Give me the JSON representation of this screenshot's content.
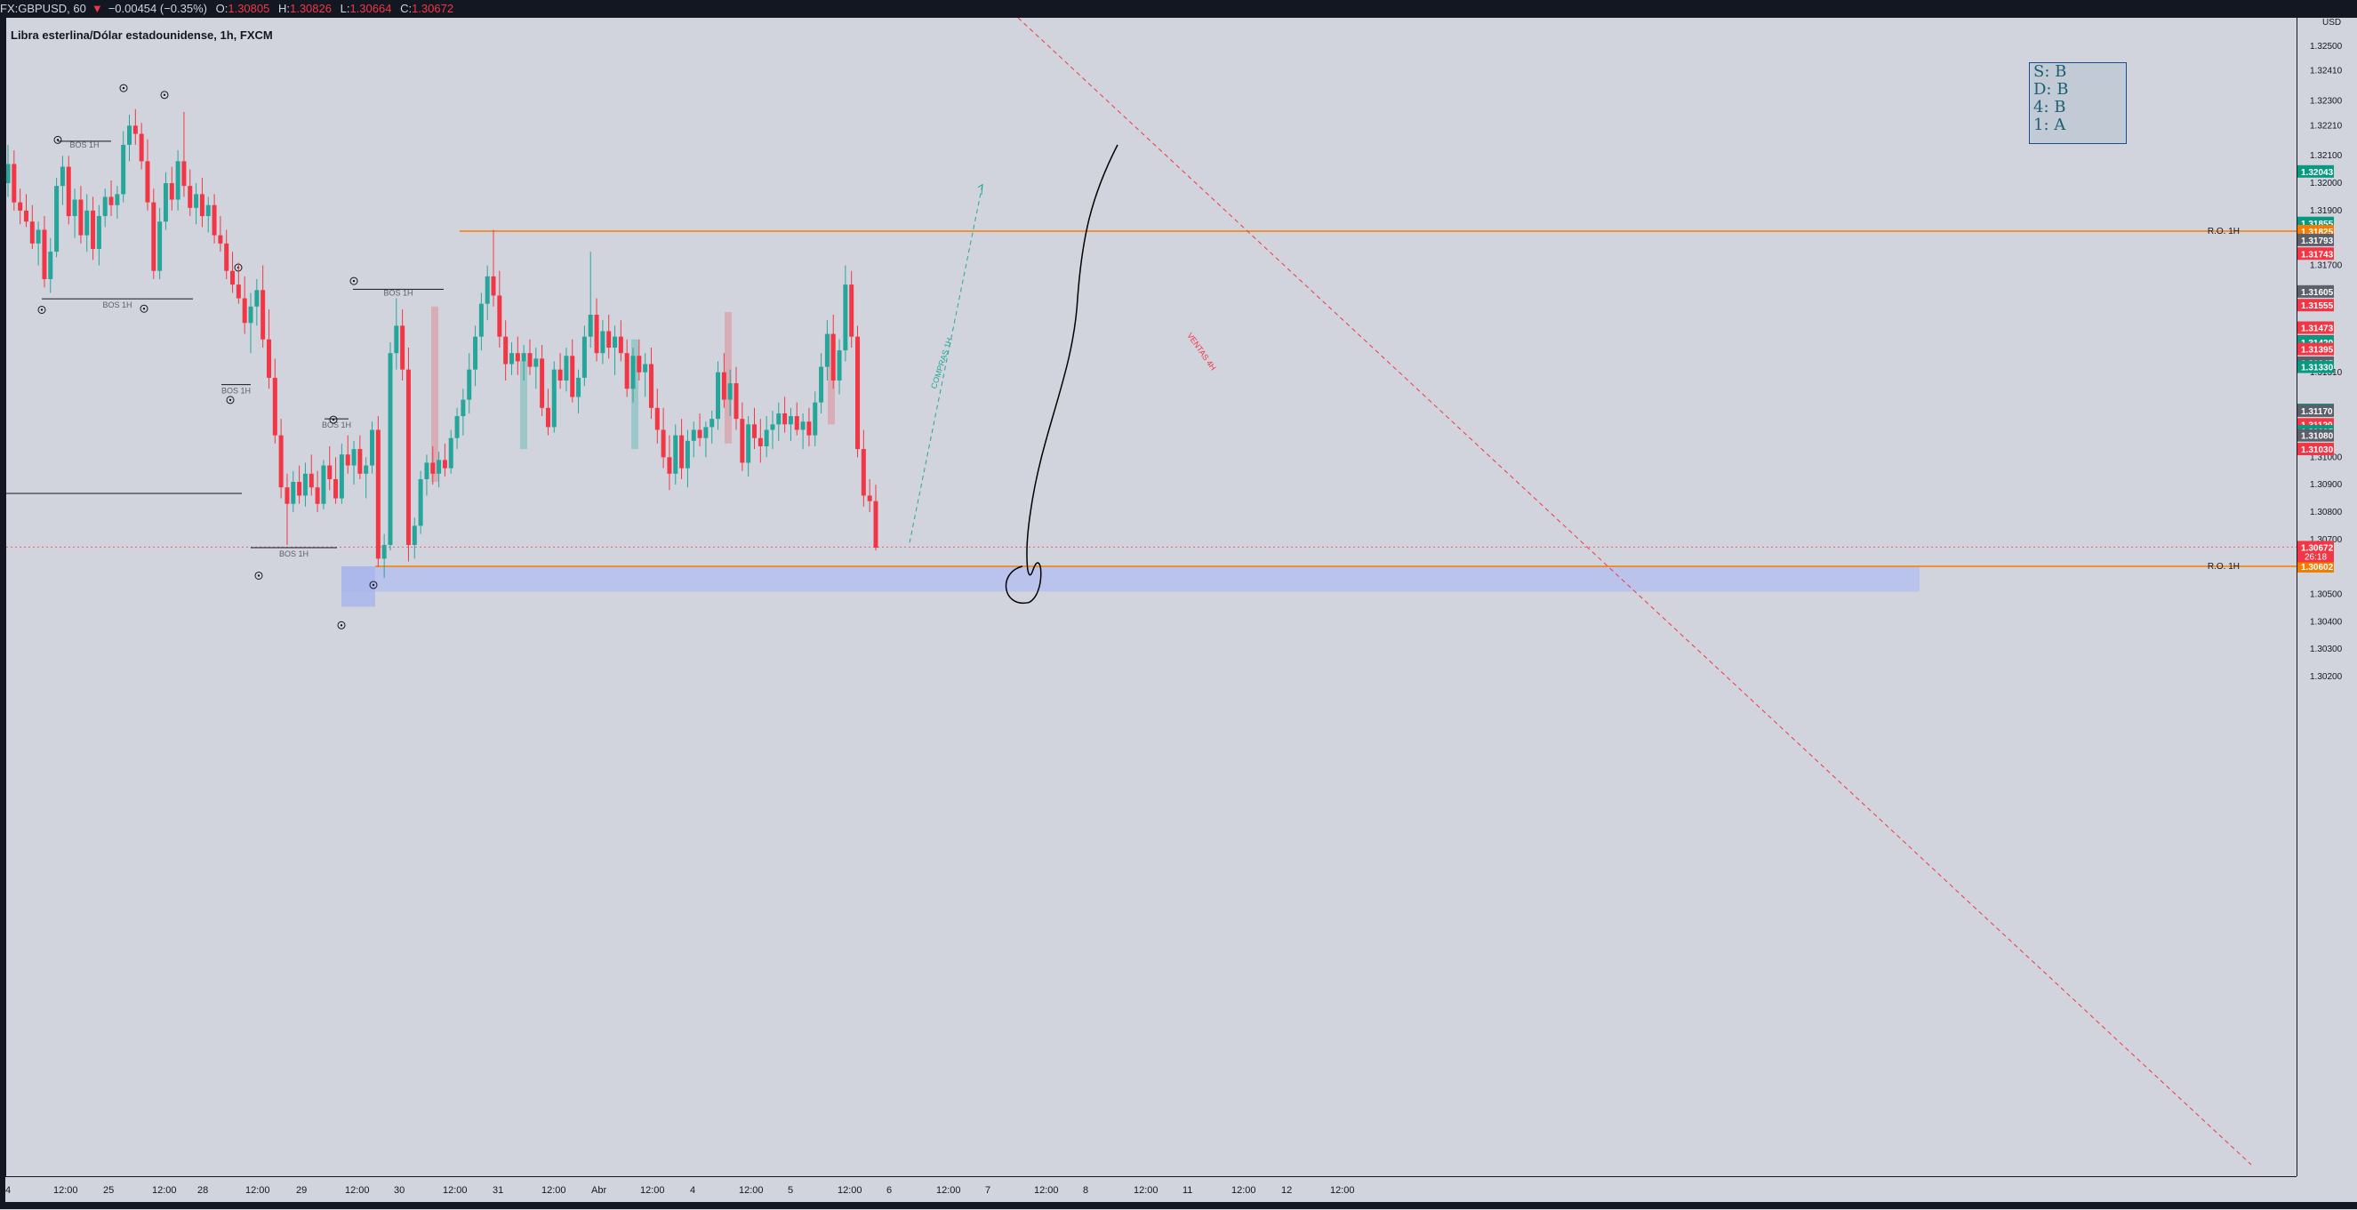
{
  "header": {
    "symbol": "FX:GBPUSD, 60",
    "last": "1.30672",
    "change": "−0.00454 (−0.35%)",
    "o_label": "O:",
    "o": "1.30805",
    "h_label": "H:",
    "h": "1.30826",
    "l_label": "L:",
    "l": "1.30664",
    "c_label": "C:",
    "c": "1.30672",
    "title": "Libra esterlina/Dólar estadounidense, 1h, FXCM"
  },
  "infobox": {
    "lines": [
      "S: B",
      "D: B",
      "4: B",
      "1: A"
    ]
  },
  "colors": {
    "up": "#26a69a",
    "down": "#f23645",
    "bg": "#d1d4dc",
    "orange": "#f57c00",
    "zone": "#b2bdf0"
  },
  "chart_data": {
    "type": "candlestick",
    "currency": "USD",
    "yaxis": {
      "ticks": [
        1.325,
        1.3241,
        1.323,
        1.3221,
        1.321,
        1.32,
        1.319,
        1.317,
        1.3131,
        1.31,
        1.309,
        1.308,
        1.307,
        1.305,
        1.304,
        1.303,
        1.302
      ],
      "tick_labels": [
        "1.32500",
        "1.32410",
        "1.32300",
        "1.32210",
        "1.32100",
        "1.32000",
        "1.31900",
        "1.31700",
        "1.31310",
        "1.31000",
        "1.30900",
        "1.30800",
        "1.30700",
        "1.30500",
        "1.30400",
        "1.30300",
        "1.30200"
      ],
      "range": [
        1.3016,
        1.3262
      ]
    },
    "xaxis": {
      "labels": [
        "4",
        "12:00",
        "25",
        "12:00",
        "28",
        "12:00",
        "29",
        "12:00",
        "30",
        "12:00",
        "31",
        "12:00",
        "Abr",
        "12:00",
        "4",
        "12:00",
        "5",
        "12:00",
        "6",
        "12:00",
        "7",
        "12:00",
        "8",
        "12:00",
        "11",
        "12:00",
        "12",
        "12:00"
      ]
    },
    "price_labels": [
      {
        "value": "1.32043",
        "color": "#089981"
      },
      {
        "value": "1.31855",
        "color": "#089981"
      },
      {
        "value": "1.31825",
        "color": "#f57c00"
      },
      {
        "value": "1.31793",
        "color": "#5d606b"
      },
      {
        "value": "1.31743",
        "color": "#f23645"
      },
      {
        "value": "1.31605",
        "color": "#5d606b"
      },
      {
        "value": "1.31555",
        "color": "#f23645"
      },
      {
        "value": "1.31473",
        "color": "#f23645"
      },
      {
        "value": "1.31423",
        "color": "#5d606b"
      },
      {
        "value": "1.31420",
        "color": "#089981"
      },
      {
        "value": "1.31395",
        "color": "#f23645"
      },
      {
        "value": "1.31345",
        "color": "#5d606b"
      },
      {
        "value": "1.31330",
        "color": "#089981"
      },
      {
        "value": "1.31173",
        "color": "#089981"
      },
      {
        "value": "1.31170",
        "color": "#5d606b"
      },
      {
        "value": "1.31120",
        "color": "#f23645"
      },
      {
        "value": "1.31095",
        "color": "#089981"
      },
      {
        "value": "1.31080",
        "color": "#5d606b"
      },
      {
        "value": "1.31030",
        "color": "#f23645"
      },
      {
        "value": "1.30672",
        "color": "#f23645"
      },
      {
        "value": "1.30602",
        "color": "#f57c00"
      }
    ],
    "current_price": "1.30672",
    "countdown": "26:18",
    "levels": [
      {
        "label": "R.O. 1H",
        "value": 1.31825
      },
      {
        "label": "R.O. 1H",
        "value": 1.30602
      }
    ],
    "bos_labels": [
      "BOS 1H",
      "BOS 1H",
      "BOS 1H",
      "BOS 1H",
      "BOS 1H",
      "BOS 1H"
    ],
    "annotations": {
      "buy_arrow": "COMPRAS 1H",
      "sell_line": "VENTAS 4H"
    },
    "candles": [
      [
        1.32,
        1.3214,
        1.3195,
        1.3207
      ],
      [
        1.3207,
        1.3212,
        1.319,
        1.3193
      ],
      [
        1.3193,
        1.3198,
        1.3185,
        1.319
      ],
      [
        1.319,
        1.3196,
        1.3184,
        1.3186
      ],
      [
        1.3186,
        1.3192,
        1.3176,
        1.3178
      ],
      [
        1.3178,
        1.3186,
        1.317,
        1.3183
      ],
      [
        1.3183,
        1.3188,
        1.3162,
        1.3165
      ],
      [
        1.3165,
        1.318,
        1.316,
        1.3175
      ],
      [
        1.3175,
        1.3202,
        1.3173,
        1.3199
      ],
      [
        1.3199,
        1.321,
        1.3192,
        1.3206
      ],
      [
        1.3206,
        1.321,
        1.3185,
        1.3188
      ],
      [
        1.3188,
        1.3198,
        1.318,
        1.3194
      ],
      [
        1.3194,
        1.3199,
        1.3178,
        1.3181
      ],
      [
        1.3181,
        1.3196,
        1.3175,
        1.319
      ],
      [
        1.319,
        1.3195,
        1.3172,
        1.3176
      ],
      [
        1.3176,
        1.3192,
        1.317,
        1.3188
      ],
      [
        1.3188,
        1.3198,
        1.3184,
        1.3195
      ],
      [
        1.3195,
        1.3201,
        1.3188,
        1.3192
      ],
      [
        1.3192,
        1.3199,
        1.3187,
        1.3196
      ],
      [
        1.3196,
        1.3219,
        1.3193,
        1.3214
      ],
      [
        1.3214,
        1.3225,
        1.3208,
        1.3221
      ],
      [
        1.3221,
        1.3227,
        1.3214,
        1.3218
      ],
      [
        1.3218,
        1.3222,
        1.3205,
        1.3208
      ],
      [
        1.3208,
        1.3216,
        1.319,
        1.3193
      ],
      [
        1.3193,
        1.3198,
        1.3165,
        1.3168
      ],
      [
        1.3168,
        1.3191,
        1.3165,
        1.3186
      ],
      [
        1.3186,
        1.3204,
        1.3183,
        1.32
      ],
      [
        1.32,
        1.3206,
        1.319,
        1.3194
      ],
      [
        1.3194,
        1.3212,
        1.319,
        1.3208
      ],
      [
        1.3208,
        1.3226,
        1.3195,
        1.3199
      ],
      [
        1.3199,
        1.3205,
        1.3188,
        1.3191
      ],
      [
        1.3191,
        1.32,
        1.3185,
        1.3196
      ],
      [
        1.3196,
        1.3202,
        1.3184,
        1.3188
      ],
      [
        1.3188,
        1.3195,
        1.3182,
        1.3192
      ],
      [
        1.3192,
        1.3196,
        1.3178,
        1.3181
      ],
      [
        1.3181,
        1.3188,
        1.3175,
        1.3178
      ],
      [
        1.3178,
        1.3183,
        1.3165,
        1.3168
      ],
      [
        1.3168,
        1.3175,
        1.316,
        1.3163
      ],
      [
        1.3163,
        1.3171,
        1.3156,
        1.3158
      ],
      [
        1.3158,
        1.3166,
        1.3145,
        1.3149
      ],
      [
        1.3149,
        1.316,
        1.3138,
        1.3155
      ],
      [
        1.3155,
        1.3165,
        1.3148,
        1.3161
      ],
      [
        1.3161,
        1.317,
        1.314,
        1.3143
      ],
      [
        1.3143,
        1.3154,
        1.3125,
        1.3129
      ],
      [
        1.3129,
        1.3136,
        1.3105,
        1.3108
      ],
      [
        1.3108,
        1.3114,
        1.3085,
        1.3089
      ],
      [
        1.3089,
        1.3094,
        1.3068,
        1.3083
      ],
      [
        1.3083,
        1.3095,
        1.308,
        1.3091
      ],
      [
        1.3091,
        1.3097,
        1.3083,
        1.3086
      ],
      [
        1.3086,
        1.3098,
        1.3082,
        1.3094
      ],
      [
        1.3094,
        1.3101,
        1.3086,
        1.3089
      ],
      [
        1.3089,
        1.3095,
        1.308,
        1.3083
      ],
      [
        1.3083,
        1.3099,
        1.3081,
        1.3097
      ],
      [
        1.3097,
        1.3104,
        1.3088,
        1.3092
      ],
      [
        1.3092,
        1.31,
        1.3083,
        1.3085
      ],
      [
        1.3085,
        1.3105,
        1.3083,
        1.3101
      ],
      [
        1.3101,
        1.3108,
        1.3094,
        1.3097
      ],
      [
        1.3097,
        1.3106,
        1.309,
        1.3103
      ],
      [
        1.3103,
        1.3108,
        1.3092,
        1.3094
      ],
      [
        1.3094,
        1.31,
        1.3085,
        1.3097
      ],
      [
        1.3097,
        1.3113,
        1.3094,
        1.311
      ],
      [
        1.311,
        1.3115,
        1.306,
        1.3063
      ],
      [
        1.3063,
        1.3072,
        1.3056,
        1.3068
      ],
      [
        1.3068,
        1.3142,
        1.3066,
        1.3138
      ],
      [
        1.3138,
        1.3158,
        1.3132,
        1.3148
      ],
      [
        1.3148,
        1.3154,
        1.3128,
        1.3132
      ],
      [
        1.3132,
        1.314,
        1.3062,
        1.3068
      ],
      [
        1.3068,
        1.3078,
        1.3063,
        1.3075
      ],
      [
        1.3075,
        1.3095,
        1.3072,
        1.3092
      ],
      [
        1.3092,
        1.3101,
        1.3086,
        1.3098
      ],
      [
        1.3098,
        1.3104,
        1.309,
        1.3094
      ],
      [
        1.3094,
        1.3102,
        1.3089,
        1.3099
      ],
      [
        1.3099,
        1.3105,
        1.3093,
        1.3096
      ],
      [
        1.3096,
        1.311,
        1.3094,
        1.3107
      ],
      [
        1.3107,
        1.3118,
        1.3103,
        1.3115
      ],
      [
        1.3115,
        1.3125,
        1.3108,
        1.3121
      ],
      [
        1.3121,
        1.3138,
        1.3116,
        1.3132
      ],
      [
        1.3132,
        1.3148,
        1.3126,
        1.3144
      ],
      [
        1.3144,
        1.316,
        1.3139,
        1.3156
      ],
      [
        1.3156,
        1.317,
        1.315,
        1.3166
      ],
      [
        1.3166,
        1.3183,
        1.3155,
        1.3159
      ],
      [
        1.3159,
        1.3168,
        1.314,
        1.3144
      ],
      [
        1.3144,
        1.315,
        1.3128,
        1.3134
      ],
      [
        1.3134,
        1.3142,
        1.313,
        1.3138
      ],
      [
        1.3138,
        1.3144,
        1.313,
        1.3135
      ],
      [
        1.3135,
        1.3141,
        1.3128,
        1.3138
      ],
      [
        1.3138,
        1.3143,
        1.313,
        1.3133
      ],
      [
        1.3133,
        1.314,
        1.3125,
        1.3136
      ],
      [
        1.3136,
        1.3141,
        1.3115,
        1.3118
      ],
      [
        1.3118,
        1.3125,
        1.3108,
        1.3111
      ],
      [
        1.3111,
        1.3135,
        1.3109,
        1.3132
      ],
      [
        1.3132,
        1.3138,
        1.3125,
        1.3128
      ],
      [
        1.3128,
        1.314,
        1.3124,
        1.3137
      ],
      [
        1.3137,
        1.3143,
        1.312,
        1.3122
      ],
      [
        1.3122,
        1.3132,
        1.3116,
        1.3129
      ],
      [
        1.3129,
        1.3148,
        1.3126,
        1.3144
      ],
      [
        1.3144,
        1.3175,
        1.314,
        1.3152
      ],
      [
        1.3152,
        1.3158,
        1.3135,
        1.3138
      ],
      [
        1.3138,
        1.315,
        1.3134,
        1.3146
      ],
      [
        1.3146,
        1.3152,
        1.3136,
        1.314
      ],
      [
        1.314,
        1.3148,
        1.313,
        1.3144
      ],
      [
        1.3144,
        1.315,
        1.3135,
        1.3138
      ],
      [
        1.3138,
        1.3143,
        1.3122,
        1.3125
      ],
      [
        1.3125,
        1.314,
        1.312,
        1.3137
      ],
      [
        1.3137,
        1.3143,
        1.3128,
        1.3131
      ],
      [
        1.3131,
        1.3138,
        1.3122,
        1.3134
      ],
      [
        1.3134,
        1.314,
        1.3114,
        1.3118
      ],
      [
        1.3118,
        1.3125,
        1.3105,
        1.311
      ],
      [
        1.311,
        1.3118,
        1.3096,
        1.31
      ],
      [
        1.31,
        1.3108,
        1.3088,
        1.3094
      ],
      [
        1.3094,
        1.3112,
        1.309,
        1.3108
      ],
      [
        1.3108,
        1.3114,
        1.3092,
        1.3096
      ],
      [
        1.3096,
        1.311,
        1.3089,
        1.3106
      ],
      [
        1.3106,
        1.3113,
        1.31,
        1.311
      ],
      [
        1.311,
        1.3116,
        1.3104,
        1.3107
      ],
      [
        1.3107,
        1.3113,
        1.31,
        1.3111
      ],
      [
        1.3111,
        1.3117,
        1.3105,
        1.3114
      ],
      [
        1.3114,
        1.3135,
        1.311,
        1.3131
      ],
      [
        1.3131,
        1.3138,
        1.3118,
        1.3121
      ],
      [
        1.3121,
        1.3132,
        1.3115,
        1.3127
      ],
      [
        1.3127,
        1.3133,
        1.311,
        1.3114
      ],
      [
        1.3114,
        1.312,
        1.3095,
        1.3098
      ],
      [
        1.3098,
        1.3115,
        1.3093,
        1.3112
      ],
      [
        1.3112,
        1.3118,
        1.3103,
        1.3107
      ],
      [
        1.3107,
        1.3114,
        1.3098,
        1.3104
      ],
      [
        1.3104,
        1.3115,
        1.31,
        1.311
      ],
      [
        1.311,
        1.3117,
        1.3103,
        1.3112
      ],
      [
        1.3112,
        1.312,
        1.3106,
        1.3116
      ],
      [
        1.3116,
        1.3122,
        1.3109,
        1.3112
      ],
      [
        1.3112,
        1.3118,
        1.3106,
        1.3115
      ],
      [
        1.3115,
        1.312,
        1.3108,
        1.311
      ],
      [
        1.311,
        1.3116,
        1.3103,
        1.3113
      ],
      [
        1.3113,
        1.3118,
        1.3104,
        1.3108
      ],
      [
        1.3108,
        1.3124,
        1.3104,
        1.312
      ],
      [
        1.312,
        1.3138,
        1.3116,
        1.3133
      ],
      [
        1.3133,
        1.315,
        1.3128,
        1.3145
      ],
      [
        1.3145,
        1.3152,
        1.3125,
        1.3128
      ],
      [
        1.3128,
        1.3143,
        1.3123,
        1.3139
      ],
      [
        1.3139,
        1.317,
        1.3135,
        1.3163
      ],
      [
        1.3163,
        1.3168,
        1.314,
        1.3144
      ],
      [
        1.3144,
        1.3148,
        1.31,
        1.3103
      ],
      [
        1.3103,
        1.311,
        1.3082,
        1.3086
      ],
      [
        1.3086,
        1.3092,
        1.308,
        1.3084
      ],
      [
        1.3084,
        1.309,
        1.3066,
        1.3067
      ]
    ]
  }
}
